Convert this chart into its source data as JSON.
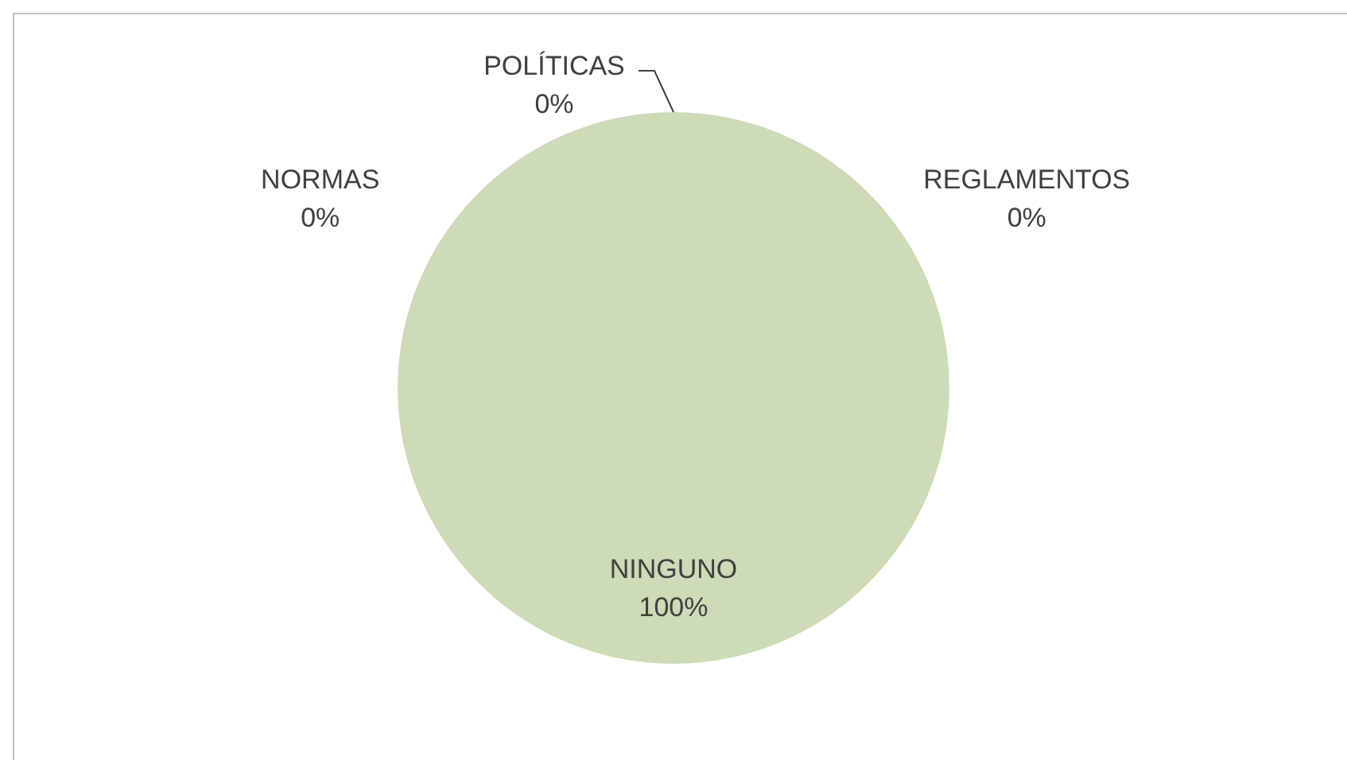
{
  "chart_data": {
    "type": "pie",
    "categories": [
      "NORMAS",
      "POLÍTICAS",
      "REGLAMENTOS",
      "NINGUNO"
    ],
    "values": [
      0,
      0,
      0,
      100
    ],
    "colors": [
      "#4f81bd",
      "#c0504d",
      "#8064a2",
      "#cddbb6"
    ],
    "value_labels": [
      "0%",
      "0%",
      "0%",
      "100%"
    ],
    "legend": false
  }
}
